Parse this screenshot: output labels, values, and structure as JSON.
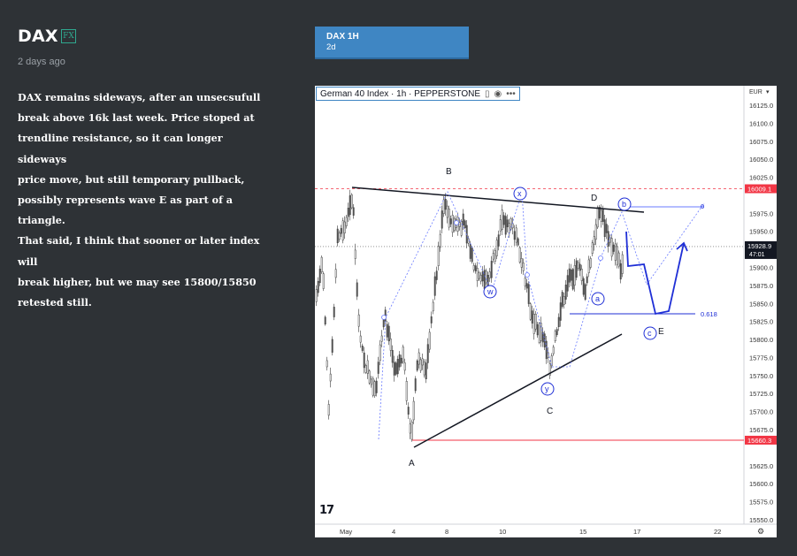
{
  "post": {
    "title": "DAX",
    "badge": "FX",
    "posted": "2 days ago",
    "body_lines": [
      "DAX remains sideways, after an unsecsufull",
      "break above 16k last week. Price stoped at",
      "trendline resistance, so it can longer sideways",
      "price move, but still temporary pullback,",
      "possibly represents wave E as part of a triangle.",
      "That said, I think that sooner or later index will",
      "break higher, but we may see 15800/15850",
      "retested still."
    ]
  },
  "tab": {
    "title": "DAX 1H",
    "subtitle": "2d"
  },
  "chart": {
    "symbol": "German 40 Index · 1h · PEPPERSTONE",
    "eye_icon": "eye-icon",
    "more_icon": "more-icon",
    "currency": "EUR",
    "logo": "TV",
    "settings_icon": "gear-icon",
    "price_labels": [
      {
        "label": "16125.0",
        "value": 16125
      },
      {
        "label": "16100.0",
        "value": 16100
      },
      {
        "label": "16075.0",
        "value": 16075
      },
      {
        "label": "16050.0",
        "value": 16050
      },
      {
        "label": "16025.0",
        "value": 16025
      },
      {
        "label": "15975.0",
        "value": 15975
      },
      {
        "label": "15950.0",
        "value": 15950
      },
      {
        "label": "15900.0",
        "value": 15900
      },
      {
        "label": "15875.0",
        "value": 15875
      },
      {
        "label": "15850.0",
        "value": 15850
      },
      {
        "label": "15825.0",
        "value": 15825
      },
      {
        "label": "15800.0",
        "value": 15800
      },
      {
        "label": "15775.0",
        "value": 15775
      },
      {
        "label": "15750.0",
        "value": 15750
      },
      {
        "label": "15725.0",
        "value": 15725
      },
      {
        "label": "15700.0",
        "value": 15700
      },
      {
        "label": "15675.0",
        "value": 15675
      },
      {
        "label": "15625.0",
        "value": 15625
      },
      {
        "label": "15600.0",
        "value": 15600
      },
      {
        "label": "15575.0",
        "value": 15575
      },
      {
        "label": "15550.0",
        "value": 15550
      }
    ],
    "hidden_partial_labels": [
      "16000.0",
      "15650.0"
    ],
    "high_marker": {
      "label": "16009.1",
      "value": 16009.1,
      "color": "#f23645"
    },
    "low_marker": {
      "label": "15660.3",
      "value": 15660.3,
      "color": "#f23645"
    },
    "last_price": {
      "label": "15928.9",
      "countdown": "47:01",
      "value": 15928.9
    },
    "time_labels": [
      "May",
      "4",
      "8",
      "10",
      "15",
      "17",
      "22"
    ],
    "wave_labels": {
      "A": "A",
      "B": "B",
      "C": "C",
      "D": "D",
      "E": "E",
      "w": "w",
      "x": "x",
      "y": "y",
      "a": "a",
      "b": "b",
      "c": "c"
    },
    "fib_levels": [
      {
        "label": "0",
        "value": 15983
      },
      {
        "label": "0.618",
        "value": 15835
      }
    ],
    "colors": {
      "wave_blue": "#1f2fd6",
      "trend": "#131722",
      "candle": "#3a3a3a",
      "fib": "#6a7bff"
    }
  }
}
